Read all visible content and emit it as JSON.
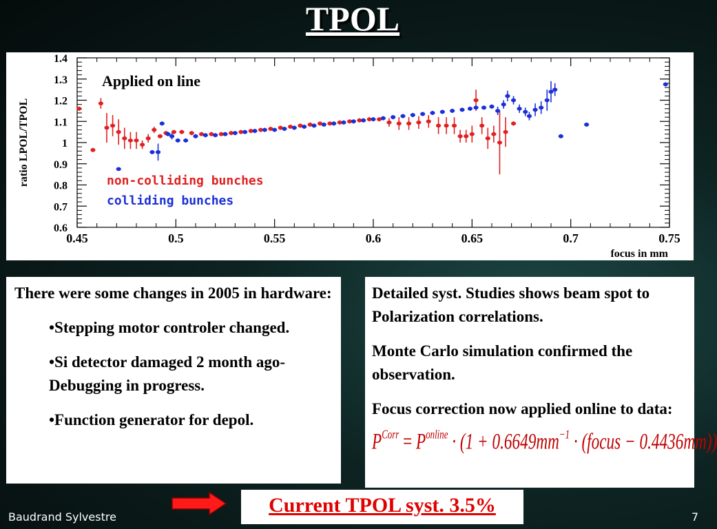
{
  "slide": {
    "title": "TPOL",
    "footer_author": "Baudrand Sylvestre",
    "page_number": "7"
  },
  "left_box": {
    "intro": "There were some changes in 2005 in hardware:",
    "bullets": [
      "•Stepping motor controler changed.",
      "•Si detector damaged 2 month ago- Debugging in progress.",
      "•Function generator for depol."
    ]
  },
  "right_box": {
    "paragraphs": [
      "Detailed syst. Studies shows beam spot to Polarization correlations.",
      "Monte Carlo simulation confirmed the observation.",
      "Focus correction now applied online to data:"
    ],
    "formula": {
      "p": "P",
      "corr": "Corr",
      "eq": " = ",
      "p2": "P",
      "online": "online",
      "body": " · (1 + 0.6649mm",
      "exp": "−1",
      "tail": " · (focus − 0.4436mm))"
    }
  },
  "syst_label": "Current TPOL syst. 3.5%",
  "chart_data": {
    "type": "scatter",
    "annotation": "Applied on line",
    "ylabel": "ratio LPOL/TPOL",
    "xlabel": "focus in mm",
    "xlim": [
      0.45,
      0.75
    ],
    "ylim": [
      0.6,
      1.4
    ],
    "x_ticks": [
      "0.45",
      "0.5",
      "0.55",
      "0.6",
      "0.65",
      "0.7",
      "0.75"
    ],
    "y_ticks": [
      "0.6",
      "0.7",
      "0.8",
      "0.9",
      "1",
      "1.1",
      "1.2",
      "1.3",
      "1.4"
    ],
    "legend": [
      "non-colliding bunches",
      "colliding bunches"
    ],
    "colors": {
      "red": "#e02020",
      "blue": "#1a2fd8"
    },
    "series": [
      {
        "name": "non-colliding bunches",
        "color": "#e02020",
        "points": [
          [
            0.451,
            1.16,
            0.01
          ],
          [
            0.458,
            0.965,
            0.01
          ],
          [
            0.462,
            1.185,
            0.025
          ],
          [
            0.465,
            1.07,
            0.07
          ],
          [
            0.468,
            1.08,
            0.05
          ],
          [
            0.471,
            1.05,
            0.06
          ],
          [
            0.474,
            1.02,
            0.05
          ],
          [
            0.477,
            1.01,
            0.04
          ],
          [
            0.48,
            1.01,
            0.04
          ],
          [
            0.483,
            0.99,
            0.02
          ],
          [
            0.486,
            1.02,
            0.02
          ],
          [
            0.489,
            1.06,
            0.015
          ],
          [
            0.492,
            1.03,
            0.01
          ],
          [
            0.495,
            1.045,
            0.01
          ],
          [
            0.499,
            1.05,
            0.01
          ],
          [
            0.503,
            1.05,
            0.01
          ],
          [
            0.508,
            1.045,
            0.01
          ],
          [
            0.513,
            1.04,
            0.01
          ],
          [
            0.518,
            1.04,
            0.01
          ],
          [
            0.523,
            1.04,
            0.01
          ],
          [
            0.528,
            1.045,
            0.01
          ],
          [
            0.533,
            1.05,
            0.01
          ],
          [
            0.538,
            1.055,
            0.01
          ],
          [
            0.543,
            1.06,
            0.01
          ],
          [
            0.548,
            1.065,
            0.01
          ],
          [
            0.553,
            1.07,
            0.01
          ],
          [
            0.558,
            1.075,
            0.01
          ],
          [
            0.563,
            1.08,
            0.01
          ],
          [
            0.568,
            1.085,
            0.01
          ],
          [
            0.573,
            1.09,
            0.01
          ],
          [
            0.578,
            1.09,
            0.01
          ],
          [
            0.583,
            1.095,
            0.01
          ],
          [
            0.588,
            1.1,
            0.01
          ],
          [
            0.593,
            1.105,
            0.01
          ],
          [
            0.598,
            1.11,
            0.01
          ],
          [
            0.603,
            1.11,
            0.01
          ],
          [
            0.608,
            1.095,
            0.02
          ],
          [
            0.613,
            1.09,
            0.03
          ],
          [
            0.618,
            1.09,
            0.03
          ],
          [
            0.623,
            1.095,
            0.03
          ],
          [
            0.628,
            1.1,
            0.03
          ],
          [
            0.633,
            1.08,
            0.04
          ],
          [
            0.637,
            1.08,
            0.04
          ],
          [
            0.641,
            1.08,
            0.04
          ],
          [
            0.644,
            1.03,
            0.03
          ],
          [
            0.647,
            1.03,
            0.03
          ],
          [
            0.65,
            1.04,
            0.04
          ],
          [
            0.652,
            1.2,
            0.05
          ],
          [
            0.655,
            1.08,
            0.04
          ],
          [
            0.658,
            1.02,
            0.05
          ],
          [
            0.661,
            1.04,
            0.04
          ],
          [
            0.664,
            1.0,
            0.15
          ],
          [
            0.667,
            1.05,
            0.07
          ],
          [
            0.671,
            1.09,
            0.01
          ]
        ]
      },
      {
        "name": "colliding bunches",
        "color": "#1a2fd8",
        "points": [
          [
            0.471,
            0.875,
            0.005
          ],
          [
            0.488,
            0.955,
            0.01
          ],
          [
            0.491,
            0.955,
            0.04
          ],
          [
            0.493,
            1.09,
            0.01
          ],
          [
            0.496,
            1.04,
            0.01
          ],
          [
            0.498,
            1.03,
            0.015
          ],
          [
            0.501,
            1.01,
            0.01
          ],
          [
            0.505,
            1.01,
            0.01
          ],
          [
            0.51,
            1.03,
            0.01
          ],
          [
            0.515,
            1.035,
            0.01
          ],
          [
            0.52,
            1.035,
            0.01
          ],
          [
            0.525,
            1.04,
            0.01
          ],
          [
            0.53,
            1.045,
            0.01
          ],
          [
            0.535,
            1.05,
            0.01
          ],
          [
            0.54,
            1.055,
            0.01
          ],
          [
            0.545,
            1.06,
            0.01
          ],
          [
            0.55,
            1.06,
            0.01
          ],
          [
            0.555,
            1.065,
            0.01
          ],
          [
            0.56,
            1.07,
            0.01
          ],
          [
            0.565,
            1.075,
            0.01
          ],
          [
            0.57,
            1.08,
            0.01
          ],
          [
            0.575,
            1.085,
            0.01
          ],
          [
            0.58,
            1.09,
            0.01
          ],
          [
            0.585,
            1.095,
            0.01
          ],
          [
            0.59,
            1.1,
            0.01
          ],
          [
            0.595,
            1.105,
            0.01
          ],
          [
            0.6,
            1.11,
            0.01
          ],
          [
            0.605,
            1.115,
            0.01
          ],
          [
            0.61,
            1.12,
            0.01
          ],
          [
            0.615,
            1.125,
            0.01
          ],
          [
            0.62,
            1.13,
            0.01
          ],
          [
            0.625,
            1.135,
            0.01
          ],
          [
            0.63,
            1.14,
            0.01
          ],
          [
            0.635,
            1.145,
            0.01
          ],
          [
            0.64,
            1.15,
            0.01
          ],
          [
            0.645,
            1.155,
            0.01
          ],
          [
            0.649,
            1.16,
            0.01
          ],
          [
            0.652,
            1.165,
            0.01
          ],
          [
            0.656,
            1.165,
            0.01
          ],
          [
            0.66,
            1.17,
            0.01
          ],
          [
            0.663,
            1.15,
            0.02
          ],
          [
            0.666,
            1.18,
            0.02
          ],
          [
            0.668,
            1.22,
            0.025
          ],
          [
            0.671,
            1.2,
            0.02
          ],
          [
            0.674,
            1.16,
            0.02
          ],
          [
            0.677,
            1.145,
            0.02
          ],
          [
            0.679,
            1.125,
            0.02
          ],
          [
            0.682,
            1.155,
            0.03
          ],
          [
            0.685,
            1.165,
            0.03
          ],
          [
            0.688,
            1.2,
            0.05
          ],
          [
            0.69,
            1.24,
            0.05
          ],
          [
            0.692,
            1.25,
            0.03
          ],
          [
            0.695,
            1.03,
            0.01
          ],
          [
            0.708,
            1.085,
            0.01
          ],
          [
            0.748,
            1.275,
            0.01
          ]
        ]
      }
    ]
  }
}
